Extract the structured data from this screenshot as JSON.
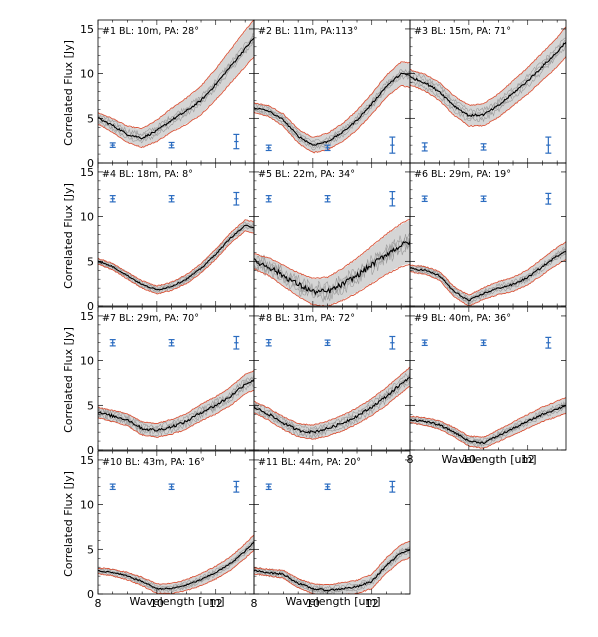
{
  "chart_data": {
    "type": "line",
    "description_axes": {
      "xlabel": "Wavelength [um]",
      "ylabel": "Correlated Flux [Jy]",
      "xlim": [
        8,
        13.3
      ],
      "ylim": [
        0,
        16
      ],
      "xticks": [
        8,
        10,
        12
      ],
      "yticks": [
        0,
        5,
        10,
        15
      ]
    },
    "panels": [
      {
        "id": "#1",
        "label": "#1   BL: 10m, PA: 28°",
        "x": [
          8,
          8.5,
          9,
          9.5,
          10,
          10.5,
          11,
          11.5,
          12,
          12.5,
          13,
          13.3
        ],
        "y": [
          5.0,
          4.2,
          3.2,
          2.8,
          3.6,
          4.8,
          5.8,
          7.0,
          8.8,
          10.8,
          12.8,
          14.0
        ],
        "band": 0.6,
        "bandGrow": 1.4,
        "noise": 0.25,
        "err": [
          [
            8.5,
            2.0,
            0.25
          ],
          [
            10.5,
            2.0,
            0.3
          ],
          [
            12.7,
            2.4,
            0.8
          ]
        ]
      },
      {
        "id": "#2",
        "label": "#2   BL: 11m, PA:113°",
        "x": [
          8,
          8.5,
          9,
          9.5,
          10,
          10.5,
          11,
          11.5,
          12,
          12.5,
          13,
          13.3
        ],
        "y": [
          6.2,
          5.8,
          4.8,
          3.0,
          2.0,
          2.4,
          3.4,
          4.8,
          6.6,
          8.6,
          10.0,
          9.8
        ],
        "band": 0.5,
        "bandGrow": 0.8,
        "noise": 0.2,
        "err": [
          [
            8.5,
            1.7,
            0.3
          ],
          [
            10.5,
            1.7,
            0.3
          ],
          [
            12.7,
            2.0,
            0.9
          ]
        ]
      },
      {
        "id": "#3",
        "label": "#3   BL: 15m, PA: 71°",
        "x": [
          8,
          8.5,
          9,
          9.5,
          10,
          10.5,
          11,
          11.5,
          12,
          12.5,
          13,
          13.3
        ],
        "y": [
          9.6,
          9.0,
          8.0,
          6.4,
          5.3,
          5.4,
          6.4,
          7.8,
          9.2,
          10.8,
          12.4,
          13.6
        ],
        "band": 0.8,
        "bandGrow": 0.8,
        "noise": 0.25,
        "err": [
          [
            8.5,
            1.8,
            0.45
          ],
          [
            10.5,
            1.8,
            0.35
          ],
          [
            12.7,
            2.0,
            0.9
          ]
        ]
      },
      {
        "id": "#4",
        "label": "#4   BL: 18m, PA:  8°",
        "x": [
          8,
          8.5,
          9,
          9.5,
          10,
          10.5,
          11,
          11.5,
          12,
          12.5,
          13,
          13.3
        ],
        "y": [
          5.0,
          4.4,
          3.4,
          2.4,
          1.8,
          2.2,
          3.0,
          4.2,
          5.8,
          7.6,
          9.0,
          8.8
        ],
        "band": 0.3,
        "bandGrow": 0.3,
        "noise": 0.15,
        "err": [
          [
            8.5,
            12.0,
            0.35
          ],
          [
            10.5,
            12.0,
            0.35
          ],
          [
            12.7,
            12.0,
            0.7
          ]
        ]
      },
      {
        "id": "#5",
        "label": "#5   BL: 22m, PA: 34°",
        "x": [
          8,
          8.5,
          9,
          9.5,
          10,
          10.5,
          11,
          11.5,
          12,
          12.5,
          13,
          13.3
        ],
        "y": [
          5.0,
          4.4,
          3.4,
          2.4,
          1.6,
          1.6,
          2.4,
          3.4,
          4.6,
          5.8,
          6.8,
          7.2
        ],
        "band": 0.8,
        "bandGrow": 1.6,
        "noise": 0.6,
        "err": [
          [
            8.5,
            12.0,
            0.35
          ],
          [
            10.5,
            12.0,
            0.35
          ],
          [
            12.7,
            12.0,
            0.8
          ]
        ]
      },
      {
        "id": "#6",
        "label": "#6   BL: 29m, PA: 19°",
        "x": [
          8,
          8.5,
          9,
          9.5,
          10,
          10.5,
          11,
          11.5,
          12,
          12.5,
          13,
          13.3
        ],
        "y": [
          4.2,
          4.0,
          3.4,
          1.6,
          0.6,
          1.4,
          2.0,
          2.4,
          3.2,
          4.4,
          5.6,
          6.2
        ],
        "band": 0.35,
        "bandGrow": 0.6,
        "noise": 0.2,
        "err": [
          [
            8.5,
            12.0,
            0.3
          ],
          [
            10.5,
            12.0,
            0.3
          ],
          [
            12.7,
            12.0,
            0.6
          ]
        ]
      },
      {
        "id": "#7",
        "label": "#7   BL: 29m, PA: 70°",
        "x": [
          8,
          8.5,
          9,
          9.5,
          10,
          10.5,
          11,
          11.5,
          12,
          12.5,
          13,
          13.3
        ],
        "y": [
          4.2,
          3.8,
          3.4,
          2.4,
          2.2,
          2.6,
          3.2,
          4.2,
          5.0,
          6.0,
          7.4,
          7.8
        ],
        "band": 0.55,
        "bandGrow": 0.5,
        "noise": 0.3,
        "err": [
          [
            8.5,
            12.0,
            0.35
          ],
          [
            10.5,
            12.0,
            0.35
          ],
          [
            12.7,
            12.0,
            0.7
          ]
        ]
      },
      {
        "id": "#8",
        "label": "#8   BL: 31m, PA: 72°",
        "x": [
          8,
          8.5,
          9,
          9.5,
          10,
          10.5,
          11,
          11.5,
          12,
          12.5,
          13,
          13.3
        ],
        "y": [
          4.8,
          4.0,
          3.0,
          2.2,
          2.0,
          2.4,
          3.0,
          3.8,
          4.8,
          6.0,
          7.4,
          8.2
        ],
        "band": 0.6,
        "bandGrow": 0.4,
        "noise": 0.3,
        "err": [
          [
            8.5,
            12.0,
            0.35
          ],
          [
            10.5,
            12.0,
            0.3
          ],
          [
            12.7,
            12.0,
            0.7
          ]
        ]
      },
      {
        "id": "#9",
        "label": "#9   BL: 40m, PA: 36°",
        "x": [
          8,
          8.5,
          9,
          9.5,
          10,
          10.5,
          11,
          11.5,
          12,
          12.5,
          13,
          13.3
        ],
        "y": [
          3.4,
          3.2,
          2.8,
          2.0,
          1.0,
          0.8,
          1.6,
          2.4,
          3.2,
          4.0,
          4.6,
          5.0
        ],
        "band": 0.35,
        "bandGrow": 0.5,
        "noise": 0.2,
        "err": [
          [
            8.5,
            12.0,
            0.3
          ],
          [
            10.5,
            12.0,
            0.3
          ],
          [
            12.7,
            12.0,
            0.6
          ]
        ]
      },
      {
        "id": "#10",
        "label": "#10   BL: 43m, PA: 16°",
        "x": [
          8,
          8.5,
          9,
          9.5,
          10,
          10.5,
          11,
          11.5,
          12,
          12.5,
          13,
          13.3
        ],
        "y": [
          2.6,
          2.4,
          2.0,
          1.4,
          0.6,
          0.6,
          1.0,
          1.6,
          2.4,
          3.4,
          4.8,
          5.8
        ],
        "band": 0.3,
        "bandGrow": 0.5,
        "noise": 0.15,
        "err": [
          [
            8.5,
            12.0,
            0.3
          ],
          [
            10.5,
            12.0,
            0.3
          ],
          [
            12.7,
            12.0,
            0.6
          ]
        ]
      },
      {
        "id": "#11",
        "label": "#11   BL: 44m, PA: 20°",
        "x": [
          8,
          8.5,
          9,
          9.5,
          10,
          10.5,
          11,
          11.5,
          12,
          12.5,
          13,
          13.3
        ],
        "y": [
          2.6,
          2.4,
          2.2,
          1.2,
          0.6,
          0.4,
          0.6,
          0.8,
          1.4,
          3.2,
          4.6,
          5.0
        ],
        "band": 0.3,
        "bandGrow": 0.6,
        "noise": 0.2,
        "err": [
          [
            8.5,
            12.0,
            0.3
          ],
          [
            10.5,
            12.0,
            0.3
          ],
          [
            12.7,
            12.0,
            0.6
          ]
        ]
      }
    ],
    "colors": {
      "mean": "#000000",
      "band": "#d5d5d5",
      "scans": "#9a9a9a",
      "model": "#d9553a",
      "errorbars": "#2b6cc0"
    }
  }
}
